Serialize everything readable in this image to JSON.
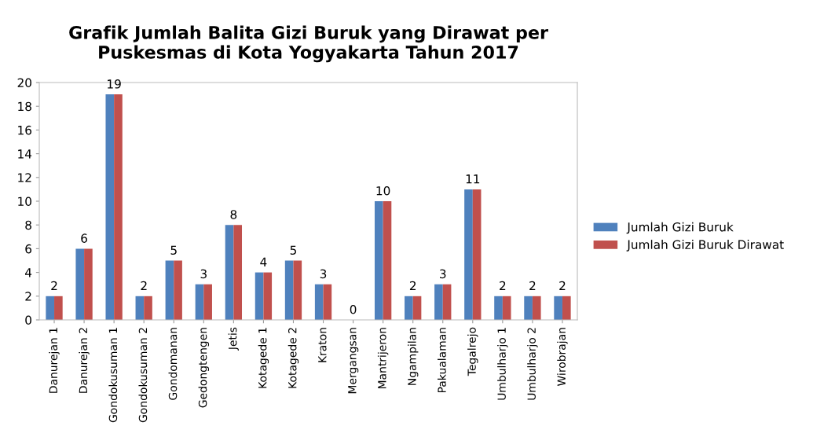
{
  "chart_data": {
    "type": "bar",
    "title": "Grafik Jumlah Balita Gizi Buruk yang Dirawat per\nPuskesmas di Kota Yogyakarta Tahun 2017",
    "categories": [
      "Danurejan 1",
      "Danurejan 2",
      "Gondokusuman 1",
      "Gondokusuman 2",
      "Gondomanan",
      "Gedongtengen",
      "Jetis",
      "Kotagede 1",
      "Kotagede 2",
      "Kraton",
      "Mergangsan",
      "Mantrijeron",
      "Ngampilan",
      "Pakualaman",
      "Tegalrejo",
      "Umbulharjo 1",
      "Umbulharjo 2",
      "Wirobrajan"
    ],
    "series": [
      {
        "name": "Jumlah Gizi Buruk",
        "color": "#4f81bd",
        "values": [
          2,
          6,
          19,
          2,
          5,
          3,
          8,
          4,
          5,
          3,
          0,
          10,
          2,
          3,
          11,
          2,
          2,
          2
        ],
        "value_labels": [
          "2",
          "6",
          "19",
          "2",
          "5",
          "3",
          "8",
          "4",
          "5",
          "3",
          "0",
          "10",
          "2",
          "3",
          "11",
          "2",
          "2",
          "2"
        ]
      },
      {
        "name": "Jumlah Gizi Buruk Dirawat",
        "color": "#c0504d",
        "values": [
          2,
          6,
          19,
          2,
          5,
          3,
          8,
          4,
          5,
          3,
          0,
          10,
          2,
          3,
          11,
          2,
          2,
          2
        ]
      }
    ],
    "ylim": [
      0,
      20
    ],
    "yticks": [
      0,
      2,
      4,
      6,
      8,
      10,
      12,
      14,
      16,
      18,
      20
    ],
    "grid": false,
    "legend": "right"
  }
}
